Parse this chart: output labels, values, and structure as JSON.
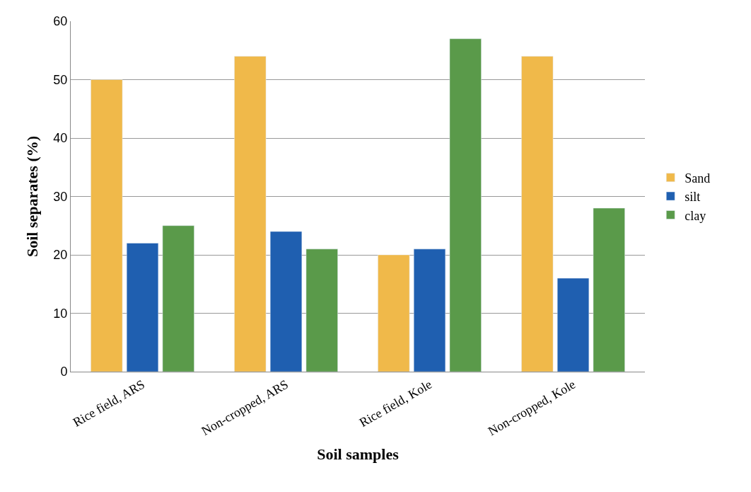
{
  "chart_data": {
    "type": "bar",
    "xlabel": "Soil samples",
    "ylabel": "Soil separates (%)",
    "categories": [
      "Rice field, ARS",
      "Non-cropped, ARS",
      "Rice field, Kole",
      "Non-cropped, Kole"
    ],
    "series": [
      {
        "name": "Sand",
        "color": "#f0b94a",
        "values": [
          50,
          54,
          20,
          54
        ]
      },
      {
        "name": "silt",
        "color": "#1f5fb0",
        "values": [
          22,
          24,
          21,
          16
        ]
      },
      {
        "name": "clay",
        "color": "#5a9a4a",
        "values": [
          25,
          21,
          57,
          28
        ]
      }
    ],
    "ylim": [
      0,
      60
    ],
    "yticks": [
      0,
      10,
      20,
      30,
      40,
      50,
      60
    ],
    "grid": "y",
    "legend": "right"
  }
}
